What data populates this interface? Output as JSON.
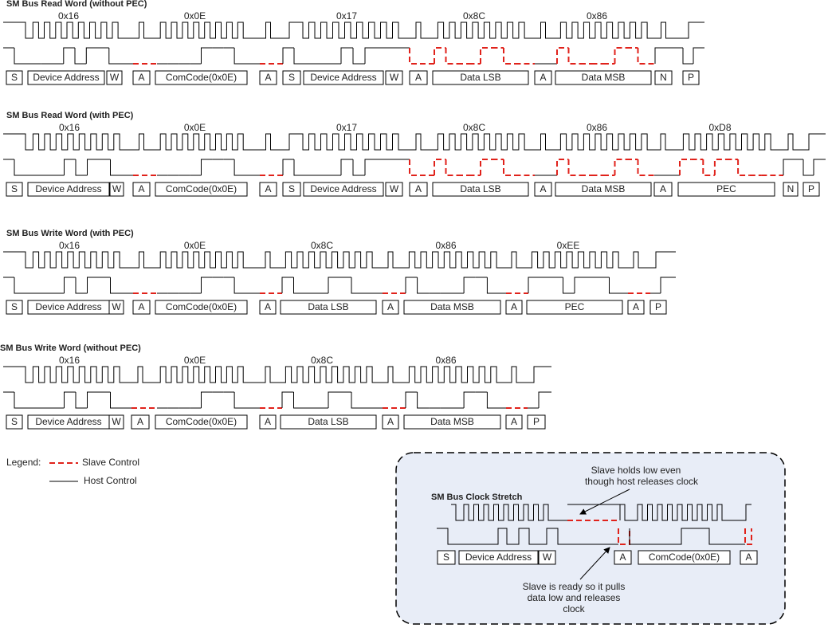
{
  "diagrams": [
    {
      "title": "SM Bus Read Word (without PEC)",
      "bytes": [
        "0x16",
        "0x0E",
        "0x17",
        "0x8C",
        "0x86"
      ],
      "fields": [
        "S",
        "Device Address",
        "W",
        "A",
        "ComCode(0x0E)",
        "A",
        "S",
        "Device Address",
        "W",
        "A",
        "Data LSB",
        "A",
        "Data MSB",
        "N",
        "P"
      ]
    },
    {
      "title": "SM Bus Read Word (with PEC)",
      "bytes": [
        "0x16",
        "0x0E",
        "0x17",
        "0x8C",
        "0x86",
        "0xD8"
      ],
      "fields": [
        "S",
        "Device Address",
        "W",
        "A",
        "ComCode(0x0E)",
        "A",
        "S",
        "Device Address",
        "W",
        "A",
        "Data LSB",
        "A",
        "Data MSB",
        "A",
        "PEC",
        "N",
        "P"
      ]
    },
    {
      "title": "SM Bus Write Word (with PEC)",
      "bytes": [
        "0x16",
        "0x0E",
        "0x8C",
        "0x86",
        "0xEE"
      ],
      "fields": [
        "S",
        "Device Address",
        "W",
        "A",
        "ComCode(0x0E)",
        "A",
        "Data LSB",
        "A",
        "Data MSB",
        "A",
        "PEC",
        "A",
        "P"
      ]
    },
    {
      "title": "SM Bus Write Word (without PEC)",
      "bytes": [
        "0x16",
        "0x0E",
        "0x8C",
        "0x86"
      ],
      "fields": [
        "S",
        "Device Address",
        "W",
        "A",
        "ComCode(0x0E)",
        "A",
        "Data LSB",
        "A",
        "Data MSB",
        "A",
        "P"
      ]
    }
  ],
  "legend": {
    "label": "Legend:",
    "slave": "Slave Control",
    "host": "Host Control"
  },
  "inset": {
    "title": "SM Bus Clock Stretch",
    "note_top": [
      "Slave holds low even",
      "though host releases clock"
    ],
    "note_bottom": [
      "Slave is ready so it pulls",
      "data low and releases",
      "clock"
    ],
    "fields": [
      "S",
      "Device Address",
      "W",
      "A",
      "ComCode(0x0E)",
      "A"
    ]
  }
}
